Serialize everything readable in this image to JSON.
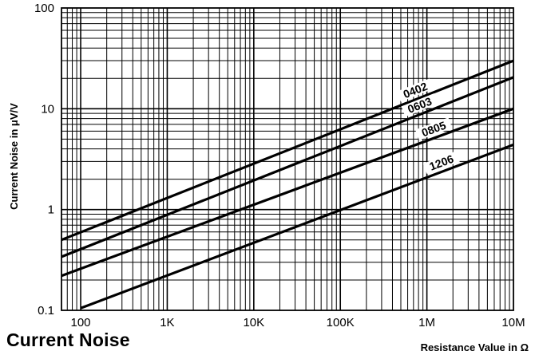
{
  "chart_data": {
    "type": "line",
    "title": "Current Noise",
    "xlabel": "Resistance Value in Ω",
    "ylabel": "Current Noise in μV/V",
    "xscale": "log",
    "yscale": "log",
    "xlim": [
      60,
      10000000
    ],
    "ylim": [
      0.1,
      100
    ],
    "grid": true,
    "x_ticks": [
      {
        "value": 100,
        "label": "100"
      },
      {
        "value": 1000,
        "label": "1K"
      },
      {
        "value": 10000,
        "label": "10K"
      },
      {
        "value": 100000,
        "label": "100K"
      },
      {
        "value": 1000000,
        "label": "1M"
      },
      {
        "value": 10000000,
        "label": "10M"
      }
    ],
    "y_ticks": [
      {
        "value": 0.1,
        "label": "0.1"
      },
      {
        "value": 1,
        "label": "1"
      },
      {
        "value": 10,
        "label": "10"
      },
      {
        "value": 100,
        "label": "100"
      }
    ],
    "series": [
      {
        "name": "0402",
        "x": [
          60,
          10000000
        ],
        "y": [
          0.5,
          30
        ],
        "label_at": 800000
      },
      {
        "name": "0603",
        "x": [
          60,
          10000000
        ],
        "y": [
          0.34,
          20.5
        ],
        "label_at": 900000
      },
      {
        "name": "0805",
        "x": [
          60,
          10000000
        ],
        "y": [
          0.22,
          10
        ],
        "label_at": 1300000
      },
      {
        "name": "1206",
        "x": [
          100,
          10000000
        ],
        "y": [
          0.105,
          4.4
        ],
        "label_at": 1600000
      }
    ]
  }
}
